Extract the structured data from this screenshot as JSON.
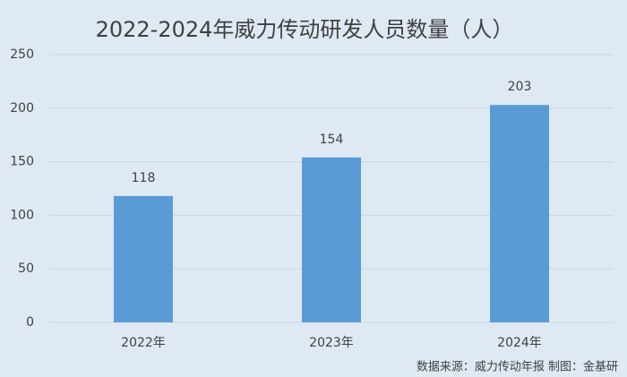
{
  "chart_data": {
    "type": "bar",
    "title": "2022-2024年威力传动研发人员数量（人）",
    "categories": [
      "2022年",
      "2023年",
      "2024年"
    ],
    "values": [
      118,
      154,
      203
    ],
    "color": "#5b9bd5",
    "ylim": [
      0,
      250
    ],
    "yticks": [
      0,
      50,
      100,
      150,
      200,
      250
    ],
    "grid": true,
    "source": "数据来源：威力传动年报  制图：金基研"
  }
}
